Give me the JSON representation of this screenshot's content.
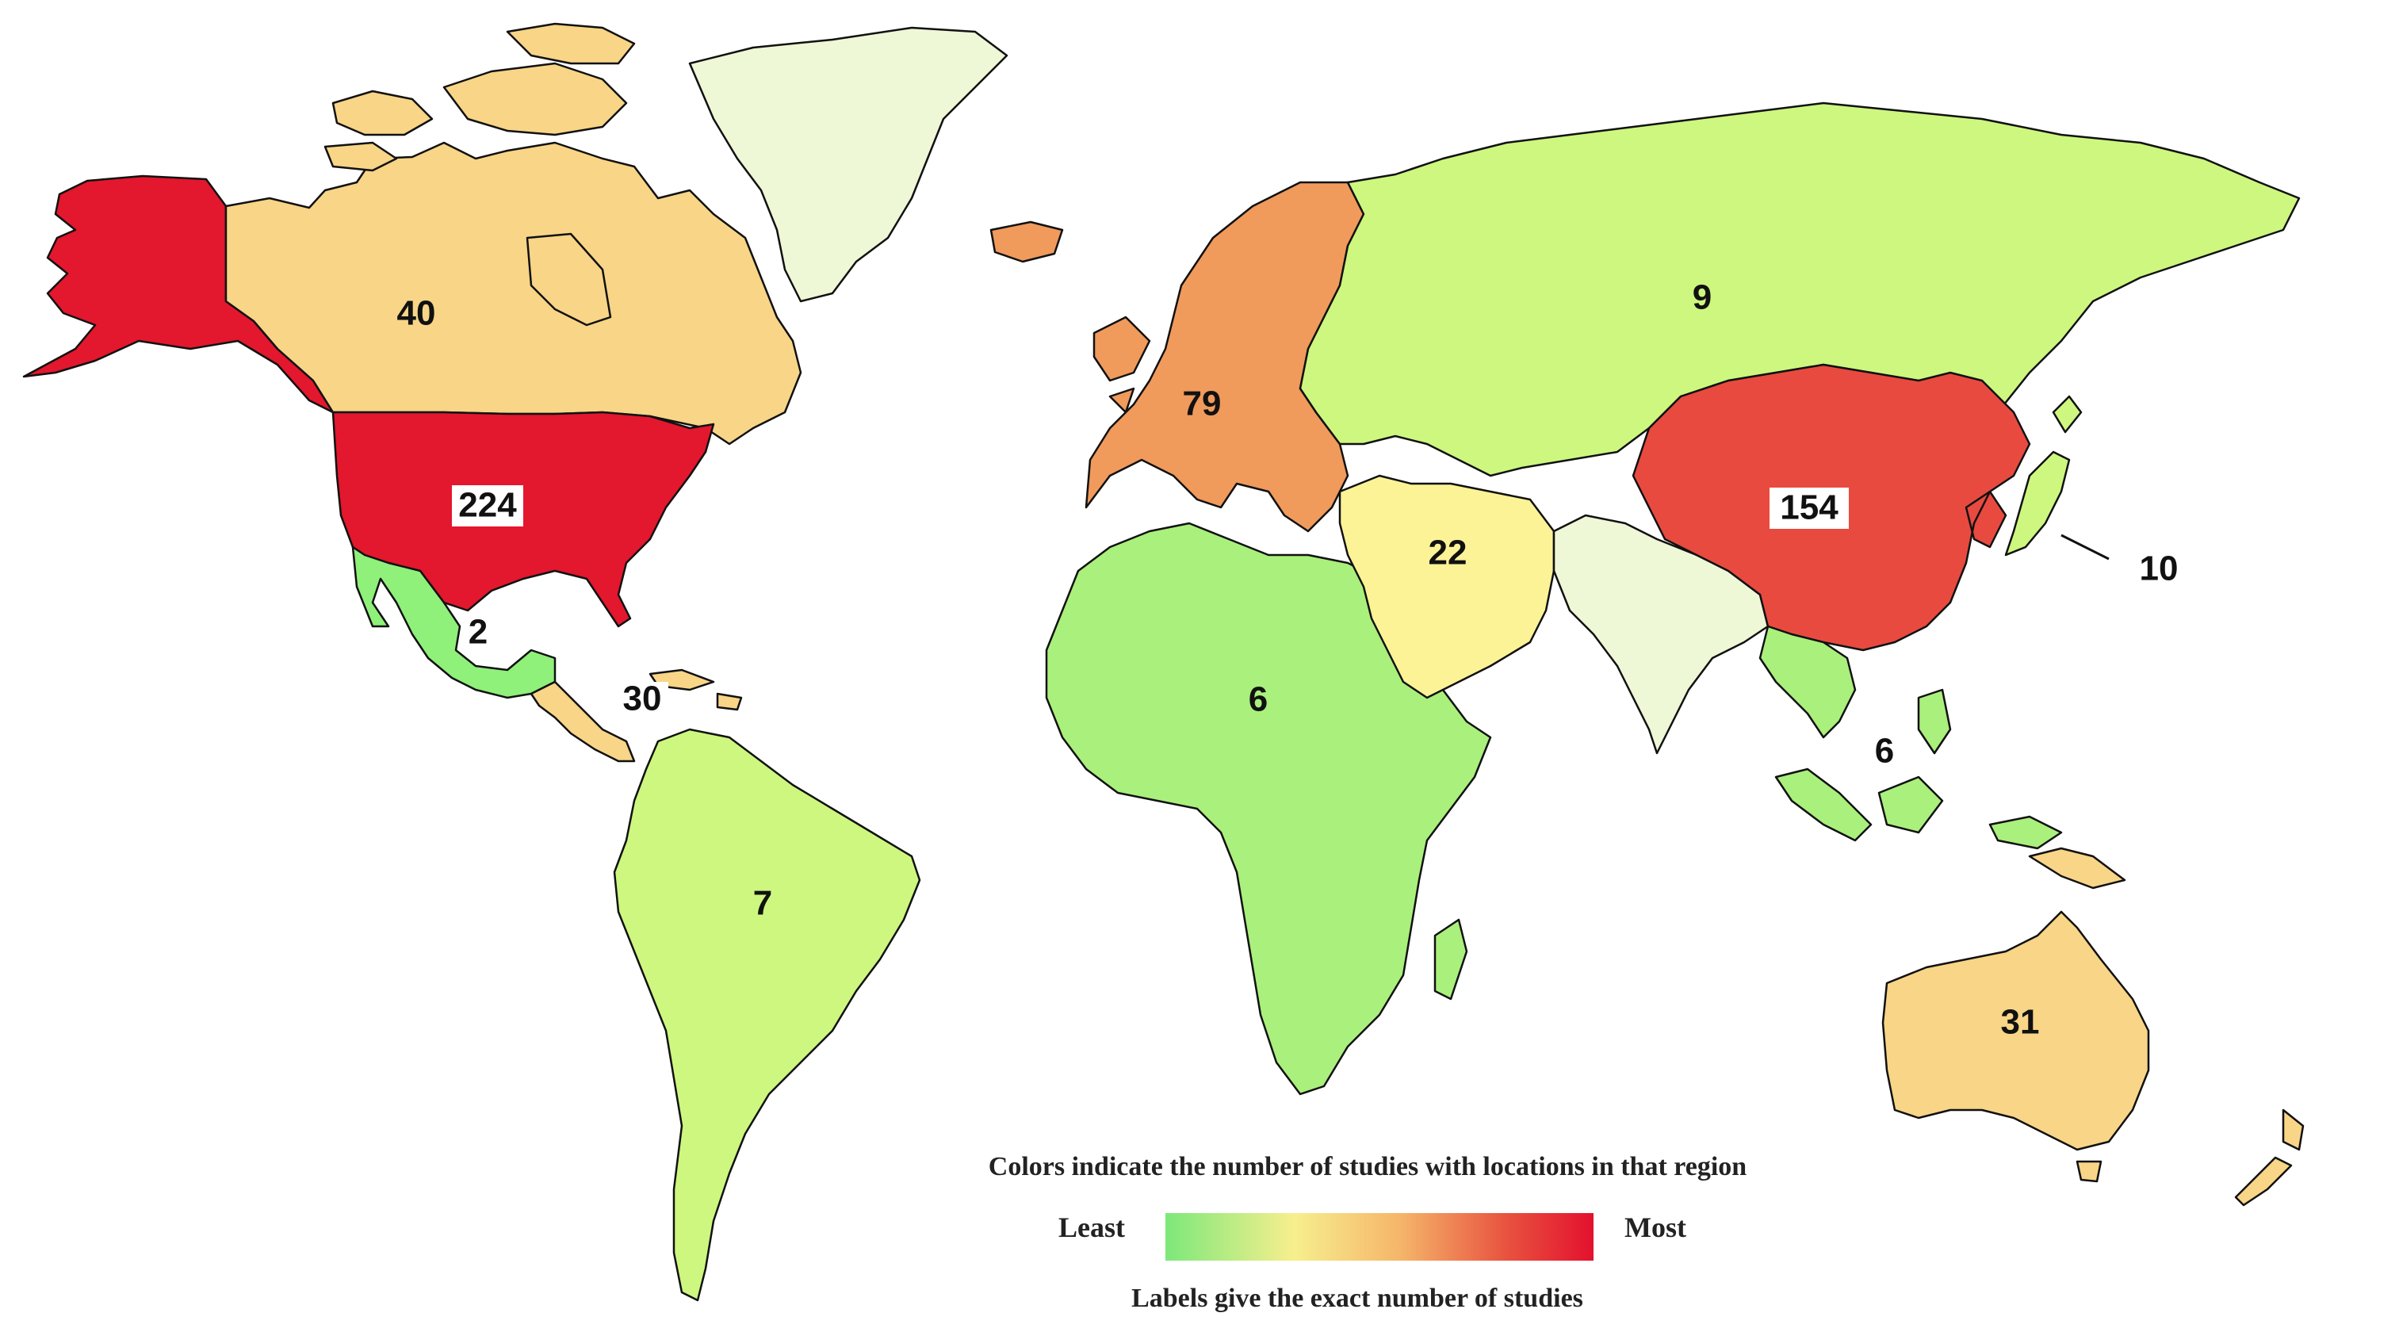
{
  "legend": {
    "title": "Colors indicate the number of studies with locations in that region",
    "least_label": "Least",
    "most_label": "Most",
    "footnote": "Labels give the exact number of studies",
    "scale_colors": [
      "#7de87a",
      "#f7ef8e",
      "#f5b56a",
      "#e8513f",
      "#e3112e"
    ]
  },
  "regions": [
    {
      "id": "united-states",
      "count": "224",
      "color": "#e3172d"
    },
    {
      "id": "alaska",
      "count": "",
      "color": "#e3172d"
    },
    {
      "id": "canada",
      "count": "40",
      "color": "#f8d587"
    },
    {
      "id": "mexico",
      "count": "2",
      "color": "#8ff07a"
    },
    {
      "id": "central-america-caribbean",
      "count": "30",
      "color": "#f8d587"
    },
    {
      "id": "south-america",
      "count": "7",
      "color": "#cdf77f"
    },
    {
      "id": "greenland",
      "count": "",
      "color": "#eef7d6"
    },
    {
      "id": "europe",
      "count": "79",
      "color": "#f09a5c"
    },
    {
      "id": "iceland",
      "count": "",
      "color": "#f09a5c"
    },
    {
      "id": "russia-central-asia",
      "count": "9",
      "color": "#cdf77f"
    },
    {
      "id": "africa",
      "count": "6",
      "color": "#aaf07c"
    },
    {
      "id": "middle-east",
      "count": "22",
      "color": "#fcf397"
    },
    {
      "id": "south-asia",
      "count": "",
      "color": "#eef7d6"
    },
    {
      "id": "east-asia",
      "count": "154",
      "color": "#e84a40"
    },
    {
      "id": "japan",
      "count": "10",
      "color": "#cdf77f"
    },
    {
      "id": "southeast-asia",
      "count": "6",
      "color": "#aaf07c"
    },
    {
      "id": "australia",
      "count": "31",
      "color": "#f8d587"
    },
    {
      "id": "new-zealand",
      "count": "",
      "color": "#f8d587"
    }
  ]
}
